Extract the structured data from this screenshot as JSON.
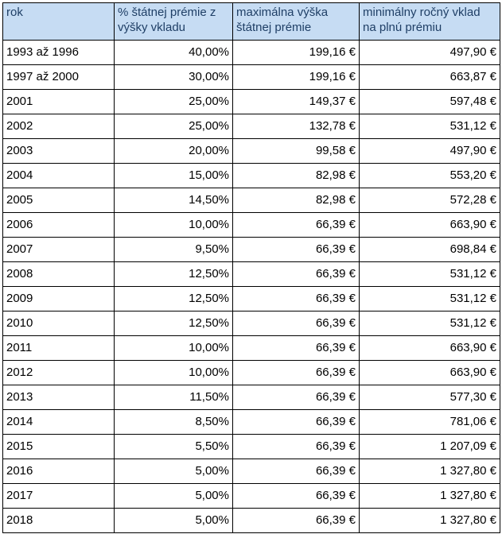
{
  "header": {
    "col1": "rok",
    "col2": "% štátnej prémie z výšky vkladu",
    "col3": "maximálna výška štátnej prémie",
    "col4": "minimálny ročný vklad na plnú prémiu"
  },
  "rows": [
    {
      "year": "1993 až 1996",
      "percent": "40,00%",
      "max": "199,16 €",
      "min": "497,90 €"
    },
    {
      "year": "1997 až 2000",
      "percent": "30,00%",
      "max": "199,16 €",
      "min": "663,87 €"
    },
    {
      "year": "2001",
      "percent": "25,00%",
      "max": "149,37 €",
      "min": "597,48 €"
    },
    {
      "year": "2002",
      "percent": "25,00%",
      "max": "132,78 €",
      "min": "531,12 €"
    },
    {
      "year": "2003",
      "percent": "20,00%",
      "max": "99,58 €",
      "min": "497,90 €"
    },
    {
      "year": "2004",
      "percent": "15,00%",
      "max": "82,98 €",
      "min": "553,20 €"
    },
    {
      "year": "2005",
      "percent": "14,50%",
      "max": "82,98 €",
      "min": "572,28 €"
    },
    {
      "year": "2006",
      "percent": "10,00%",
      "max": "66,39 €",
      "min": "663,90 €"
    },
    {
      "year": "2007",
      "percent": "9,50%",
      "max": "66,39 €",
      "min": "698,84 €"
    },
    {
      "year": "2008",
      "percent": "12,50%",
      "max": "66,39 €",
      "min": "531,12 €"
    },
    {
      "year": "2009",
      "percent": "12,50%",
      "max": "66,39 €",
      "min": "531,12 €"
    },
    {
      "year": "2010",
      "percent": "12,50%",
      "max": "66,39 €",
      "min": "531,12 €"
    },
    {
      "year": "2011",
      "percent": "10,00%",
      "max": "66,39 €",
      "min": "663,90 €"
    },
    {
      "year": "2012",
      "percent": "10,00%",
      "max": "66,39 €",
      "min": "663,90 €"
    },
    {
      "year": "2013",
      "percent": "11,50%",
      "max": "66,39 €",
      "min": "577,30 €"
    },
    {
      "year": "2014",
      "percent": "8,50%",
      "max": "66,39 €",
      "min": "781,06 €"
    },
    {
      "year": "2015",
      "percent": "5,50%",
      "max": "66,39 €",
      "min": "1 207,09 €"
    },
    {
      "year": "2016",
      "percent": "5,00%",
      "max": "66,39 €",
      "min": "1 327,80 €"
    },
    {
      "year": "2017",
      "percent": "5,00%",
      "max": "66,39 €",
      "min": "1 327,80 €"
    },
    {
      "year": "2018",
      "percent": "5,00%",
      "max": "66,39 €",
      "min": "1 327,80 €"
    }
  ]
}
